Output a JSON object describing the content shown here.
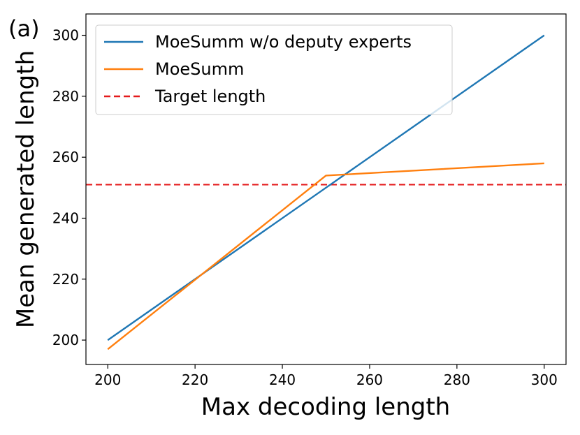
{
  "panel_label": "(a)",
  "chart_data": {
    "type": "line",
    "title": "",
    "xlabel": "Max decoding length",
    "ylabel": "Mean generated length",
    "xlim": [
      195,
      305
    ],
    "ylim": [
      192,
      307
    ],
    "xticks": [
      200,
      220,
      240,
      260,
      280,
      300
    ],
    "yticks": [
      200,
      220,
      240,
      260,
      280,
      300
    ],
    "grid": false,
    "legend_position": "top-left",
    "series": [
      {
        "name": "MoeSumm w/o deputy experts",
        "color": "#1f77b4",
        "style": "solid",
        "x": [
          200,
          250,
          300
        ],
        "y": [
          200,
          250,
          300
        ]
      },
      {
        "name": "MoeSumm",
        "color": "#ff7f0e",
        "style": "solid",
        "x": [
          200,
          250,
          300
        ],
        "y": [
          197,
          254,
          258
        ]
      }
    ],
    "reference_lines": [
      {
        "name": "Target length",
        "orientation": "horizontal",
        "y": 251,
        "color": "#e41a1c",
        "style": "dashed"
      }
    ]
  }
}
